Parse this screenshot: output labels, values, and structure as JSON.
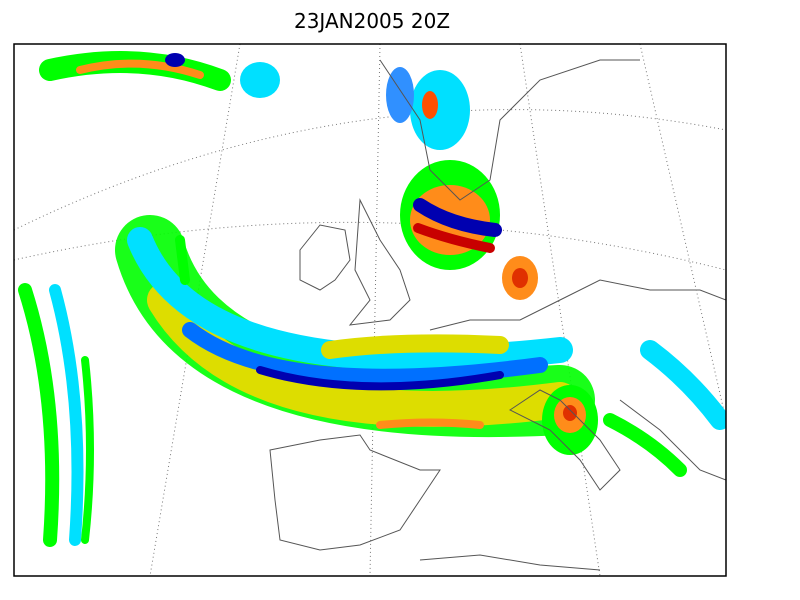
{
  "title": "23JAN2005 20Z"
}
